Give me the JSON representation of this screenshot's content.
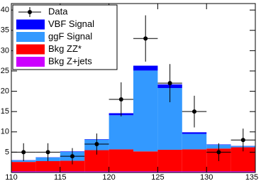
{
  "chart_data": {
    "type": "histogram",
    "bins": [
      110,
      112.5,
      115,
      117.5,
      120,
      122.5,
      125,
      127.5,
      130,
      132.5,
      135
    ],
    "series": [
      {
        "name": "Bkg Z+jets",
        "color": "#cc00ff",
        "values": [
          0.3,
          0.3,
          0.3,
          0.3,
          0.3,
          0.3,
          0.3,
          0.3,
          0.3,
          0.3
        ]
      },
      {
        "name": "Bkg ZZ*",
        "color": "#ff0000",
        "values": [
          2.3,
          2.5,
          2.6,
          5.2,
          5.4,
          4.9,
          5.3,
          5.4,
          5.6,
          5.9
        ]
      },
      {
        "name": "ggF Signal",
        "color": "#3399ff",
        "values": [
          0.4,
          0.9,
          2.2,
          2.6,
          8.4,
          19.9,
          15.2,
          3.8,
          0.9,
          0.3
        ]
      },
      {
        "name": "VBF Signal",
        "color": "#0000ff",
        "values": [
          0.05,
          0.05,
          0.1,
          0.1,
          0.5,
          1.2,
          0.9,
          0.4,
          0.1,
          0.05
        ]
      }
    ],
    "data": {
      "name": "Data",
      "color": "#000000",
      "values": [
        5,
        5,
        4,
        7,
        18,
        33,
        22,
        15,
        5,
        8
      ],
      "errors": [
        2.2,
        2.2,
        2,
        2.6,
        4.2,
        5.7,
        4.7,
        3.9,
        2.2,
        2.8
      ]
    },
    "xlim": [
      110,
      135
    ],
    "ylim": [
      0,
      41.6
    ],
    "xticks": [
      110,
      115,
      120,
      125,
      130,
      135
    ],
    "yticks": [
      5,
      10,
      15,
      20,
      25,
      30,
      35,
      40
    ],
    "legend": "top-left"
  }
}
